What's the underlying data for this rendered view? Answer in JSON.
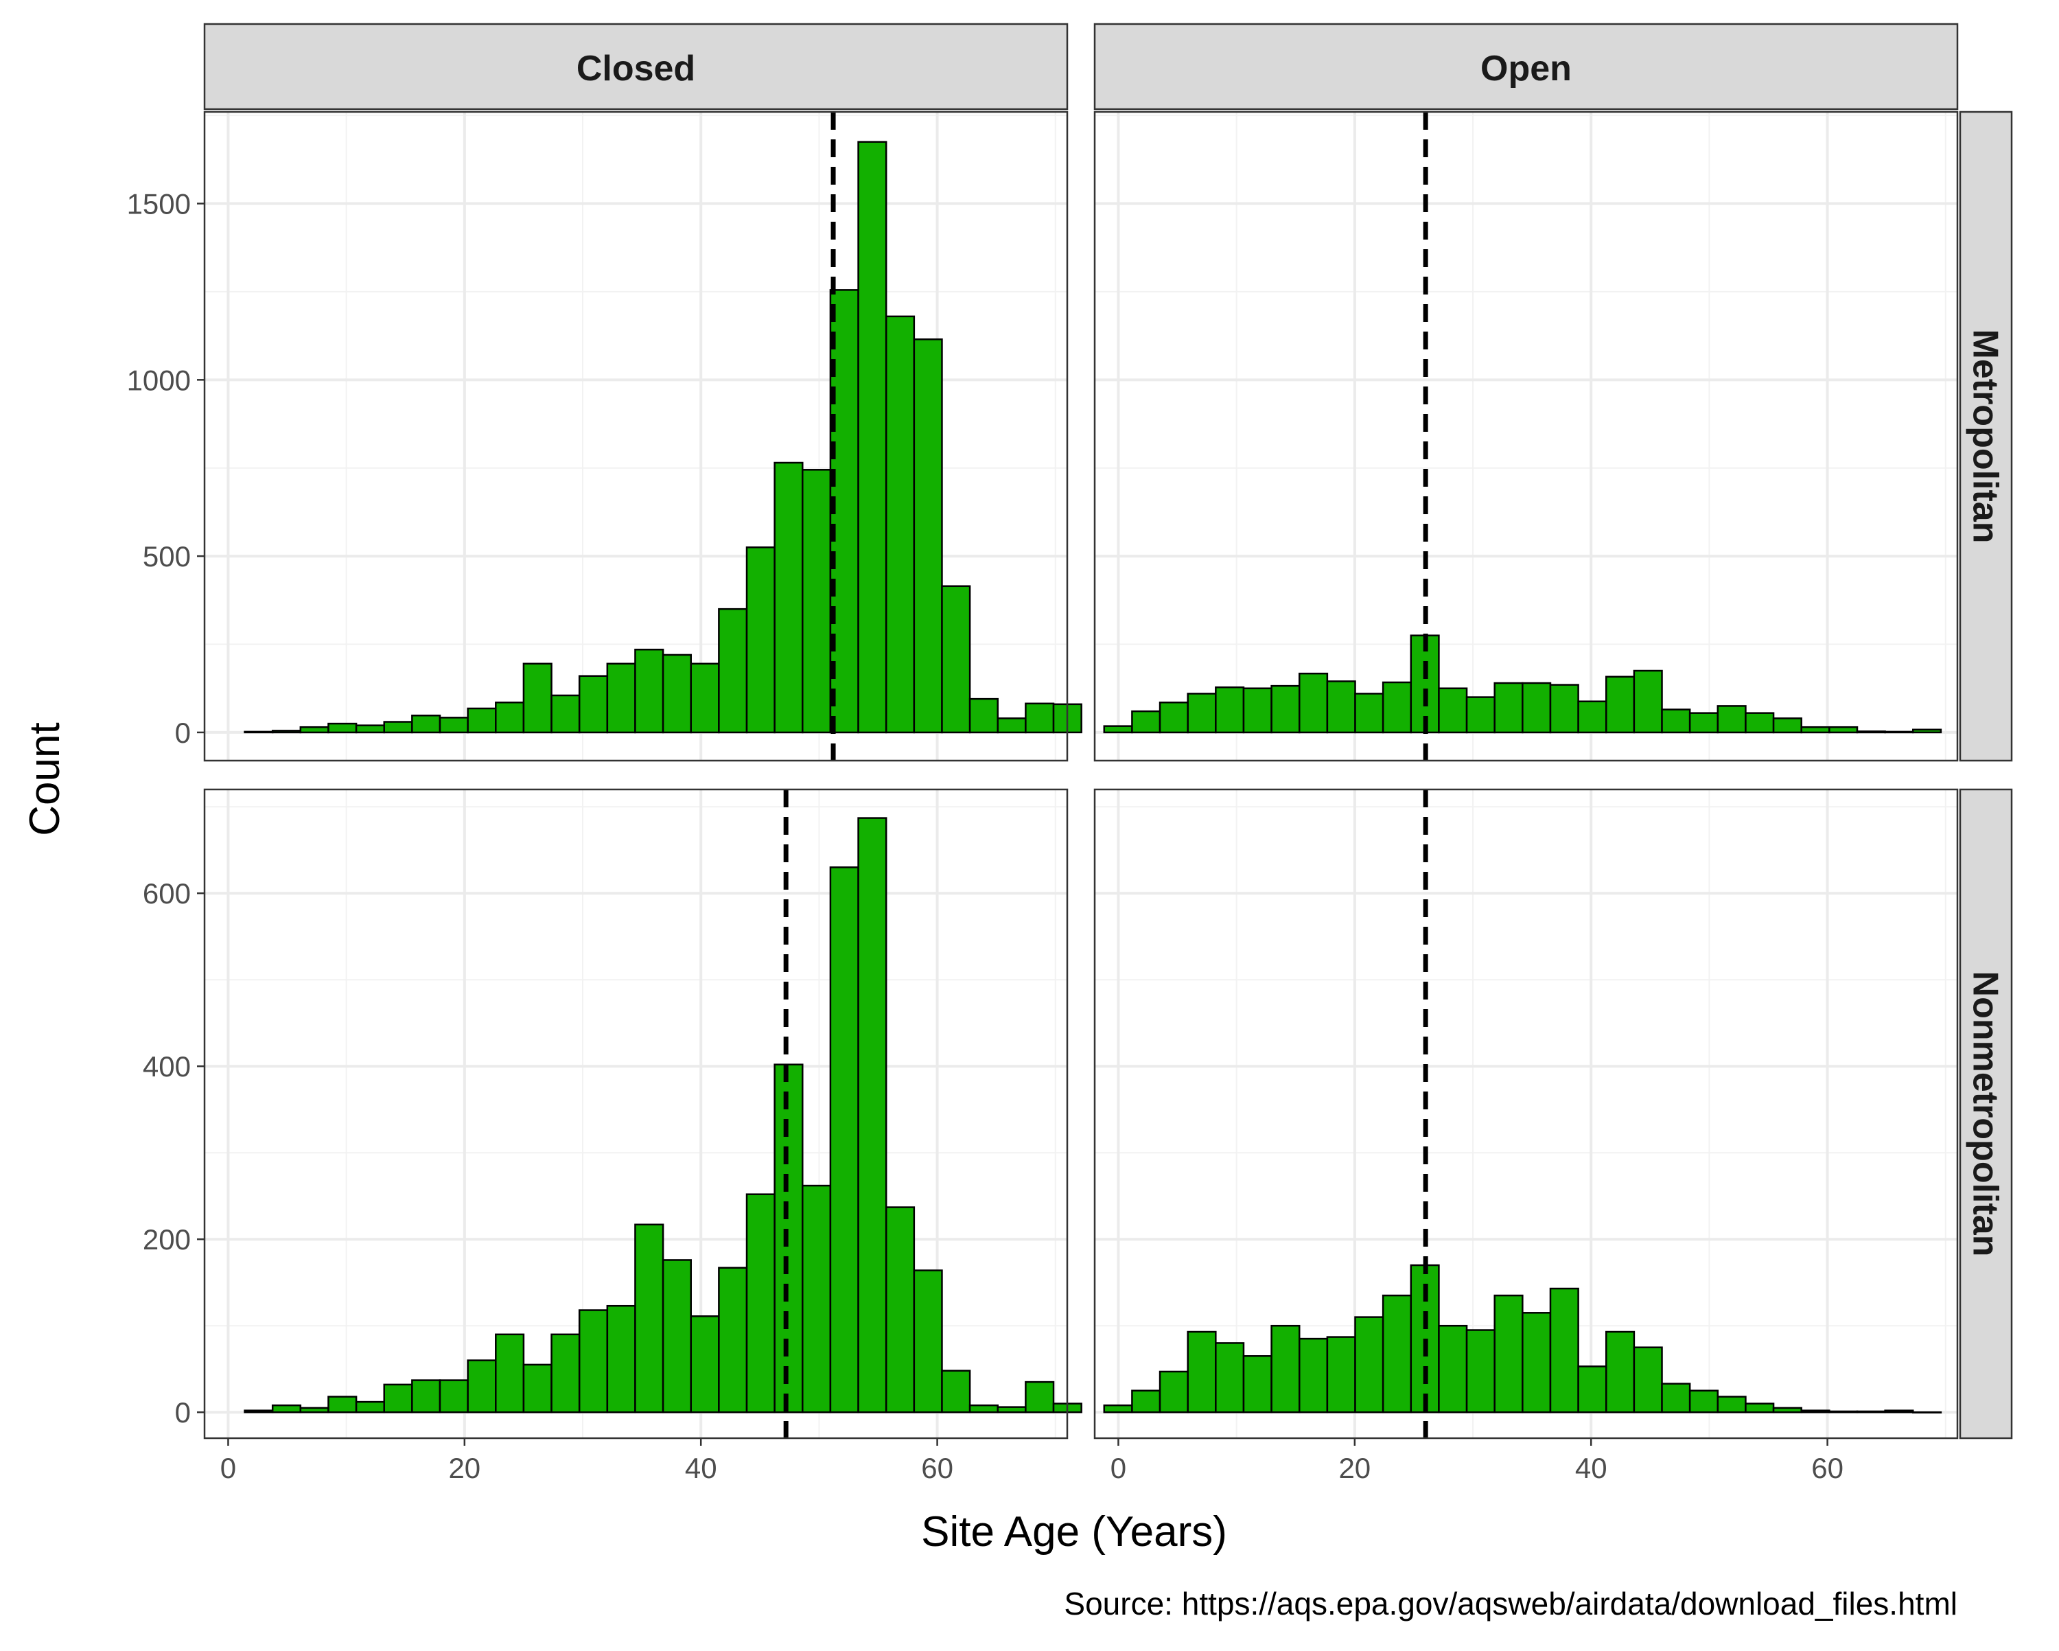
{
  "chart_data": {
    "type": "bar",
    "subtype": "faceted-histogram",
    "xlabel": "Site Age (Years)",
    "ylabel": "Count",
    "caption": "Source: https://aqs.epa.gov/aqsweb/airdata/download_files.html",
    "xlim": [
      -2,
      71
    ],
    "x_ticks": [
      0,
      20,
      40,
      60
    ],
    "x_tick_labels": [
      "0",
      "20",
      "40",
      "60"
    ],
    "bin_width": 2.36,
    "bar_color": "#12b000",
    "bar_outline": "#000000",
    "column_facets": [
      "Closed",
      "Open"
    ],
    "row_facets": [
      {
        "name": "Metropolitan",
        "ylim": [
          -80,
          1760
        ],
        "y_ticks": [
          0,
          500,
          1000,
          1500
        ],
        "y_tick_labels": [
          "0",
          "500",
          "1000",
          "1500"
        ]
      },
      {
        "name": "Nonmetropolitan",
        "ylim": [
          -30,
          720
        ],
        "y_ticks": [
          0,
          200,
          400,
          600
        ],
        "y_tick_labels": [
          "0",
          "200",
          "400",
          "600"
        ]
      }
    ],
    "panels": [
      {
        "column": "Closed",
        "row": "Metropolitan",
        "bin_start": 1.4,
        "median_line": 51.2,
        "values": [
          2,
          5,
          15,
          25,
          20,
          30,
          48,
          42,
          68,
          85,
          195,
          105,
          160,
          195,
          235,
          220,
          195,
          350,
          525,
          765,
          745,
          1255,
          1675,
          1180,
          1115,
          415,
          95,
          40,
          82,
          80
        ]
      },
      {
        "column": "Open",
        "row": "Metropolitan",
        "bin_start": -1.2,
        "median_line": 26.0,
        "values": [
          18,
          60,
          85,
          110,
          128,
          125,
          132,
          167,
          145,
          110,
          142,
          275,
          125,
          100,
          140,
          140,
          135,
          88,
          158,
          175,
          65,
          55,
          75,
          55,
          40,
          15,
          15,
          3,
          2,
          8
        ]
      },
      {
        "column": "Closed",
        "row": "Nonmetropolitan",
        "bin_start": 1.4,
        "median_line": 47.2,
        "values": [
          2,
          8,
          5,
          18,
          12,
          32,
          37,
          37,
          60,
          90,
          55,
          90,
          118,
          123,
          217,
          176,
          111,
          167,
          252,
          402,
          262,
          630,
          687,
          237,
          164,
          48,
          8,
          6,
          35,
          10
        ]
      },
      {
        "column": "Open",
        "row": "Nonmetropolitan",
        "bin_start": -1.2,
        "median_line": 26.0,
        "values": [
          8,
          25,
          47,
          93,
          80,
          65,
          100,
          85,
          87,
          110,
          135,
          170,
          100,
          95,
          135,
          115,
          143,
          53,
          93,
          75,
          33,
          25,
          18,
          10,
          5,
          2,
          1,
          1,
          2,
          0
        ]
      }
    ]
  }
}
